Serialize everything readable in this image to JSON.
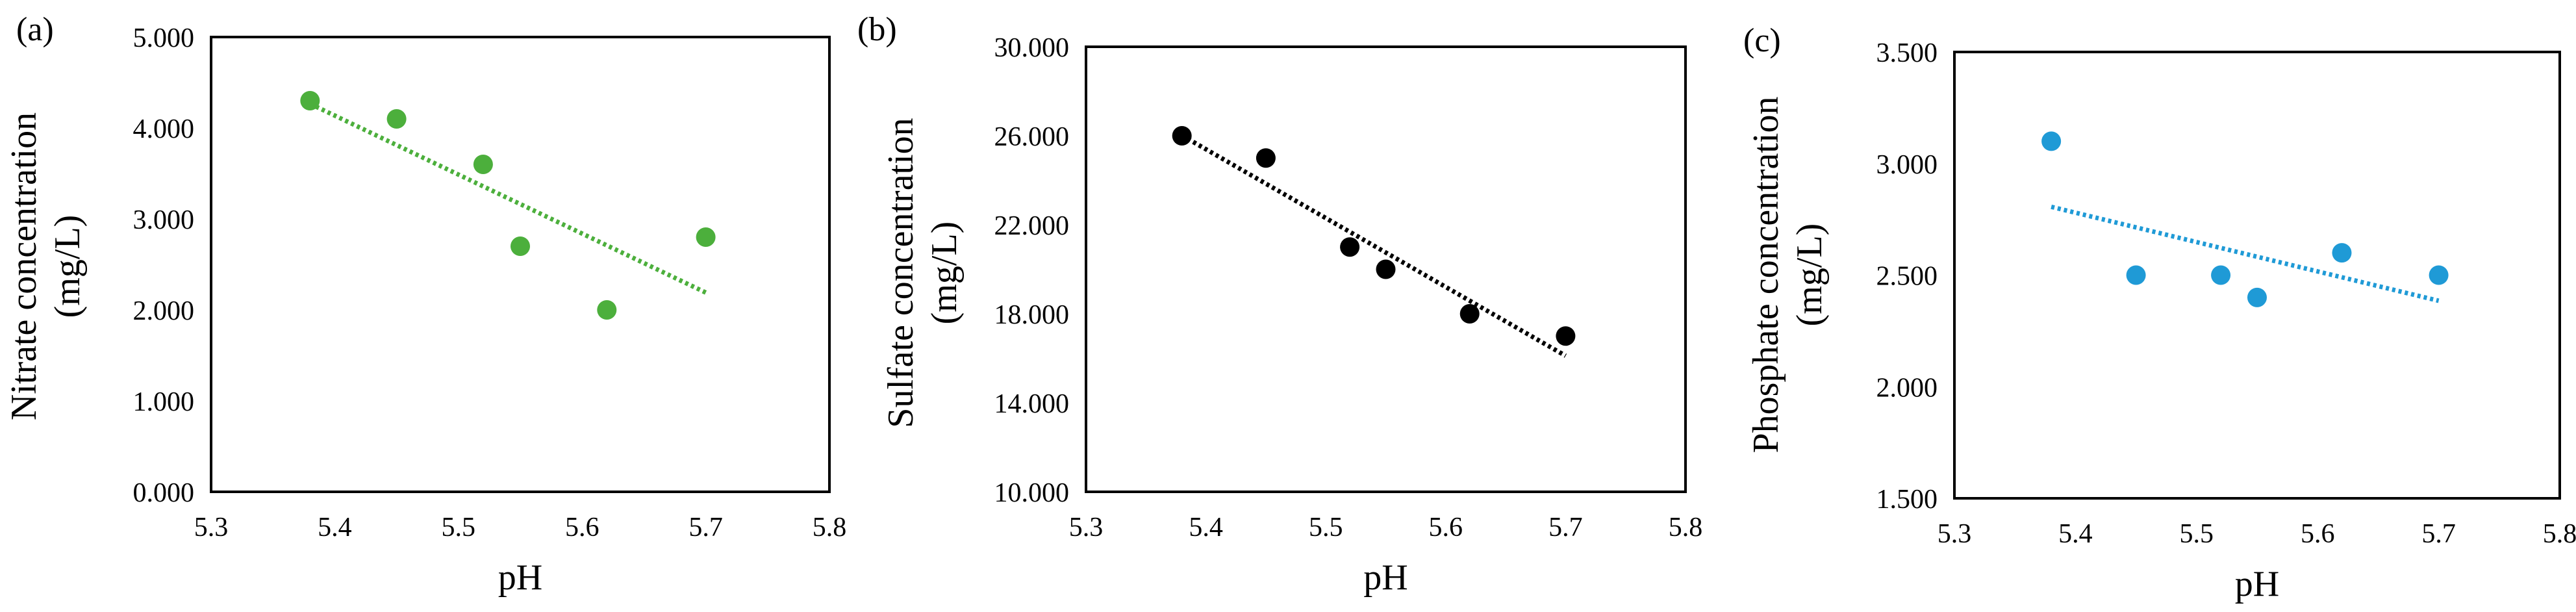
{
  "figure": {
    "panels": [
      "(a)",
      "(b)",
      "(c)"
    ]
  },
  "chart_data": [
    {
      "panel": "(a)",
      "type": "scatter",
      "xlabel": "pH",
      "ylabel_lines": [
        "Nitrate concentration",
        "(mg/L)"
      ],
      "xlim": [
        5.3,
        5.8
      ],
      "ylim": [
        0,
        5
      ],
      "x_ticks": [
        "5.3",
        "5.4",
        "5.5",
        "5.6",
        "5.7",
        "5.8"
      ],
      "y_ticks": [
        "0.000",
        "1.000",
        "2.000",
        "3.000",
        "4.000",
        "5.000"
      ],
      "grid": false,
      "color": "#4caf3c",
      "x": [
        5.38,
        5.45,
        5.52,
        5.55,
        5.62,
        5.7
      ],
      "y": [
        4.3,
        4.1,
        3.6,
        2.7,
        2.0,
        2.8
      ],
      "trendline": {
        "type": "linear",
        "style": "dotted"
      }
    },
    {
      "panel": "(b)",
      "type": "scatter",
      "xlabel": "pH",
      "ylabel_lines": [
        "Sulfate concentration",
        "(mg/L)"
      ],
      "xlim": [
        5.3,
        5.8
      ],
      "ylim": [
        10,
        30
      ],
      "x_ticks": [
        "5.3",
        "5.4",
        "5.5",
        "5.6",
        "5.7",
        "5.8"
      ],
      "y_ticks": [
        "10.000",
        "14.000",
        "18.000",
        "22.000",
        "26.000",
        "30.000"
      ],
      "grid": false,
      "color": "#000000",
      "x": [
        5.38,
        5.45,
        5.52,
        5.55,
        5.62,
        5.7
      ],
      "y": [
        26,
        25,
        21,
        20,
        18,
        17
      ],
      "trendline": {
        "type": "linear",
        "style": "dotted"
      }
    },
    {
      "panel": "(c)",
      "type": "scatter",
      "xlabel": "pH",
      "ylabel_lines": [
        "Phosphate concentration",
        "(mg/L)"
      ],
      "xlim": [
        5.3,
        5.8
      ],
      "ylim": [
        1.5,
        3.5
      ],
      "x_ticks": [
        "5.3",
        "5.4",
        "5.5",
        "5.6",
        "5.7",
        "5.8"
      ],
      "y_ticks": [
        "1.500",
        "2.000",
        "2.500",
        "3.000",
        "3.500"
      ],
      "grid": false,
      "color": "#1f9ad6",
      "x": [
        5.38,
        5.45,
        5.52,
        5.55,
        5.62,
        5.7
      ],
      "y": [
        3.1,
        2.5,
        2.5,
        2.4,
        2.6,
        2.5
      ],
      "trendline": {
        "type": "linear",
        "style": "dotted"
      }
    }
  ]
}
